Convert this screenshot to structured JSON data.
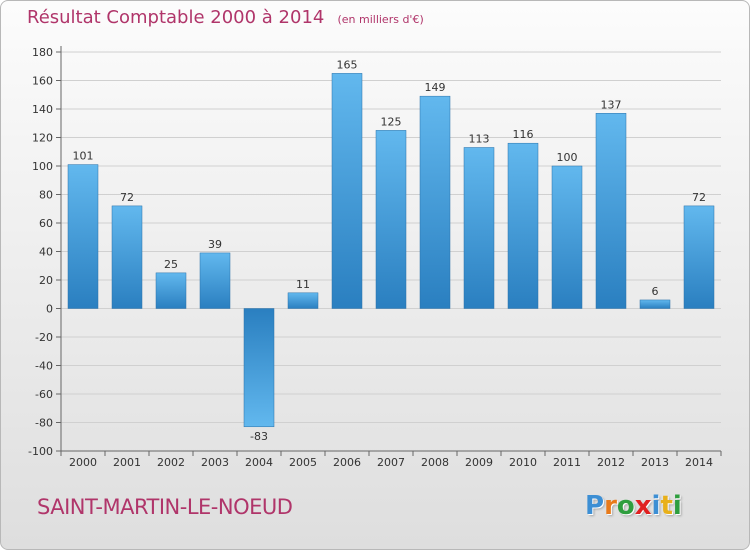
{
  "header": {
    "title": "Résultat Comptable 2000 à 2014",
    "subtitle": "(en milliers d'€)"
  },
  "commune": "SAINT-MARTIN-LE-NOEUD",
  "logo": {
    "text": "Proxiti",
    "letter_colors": [
      "#3d8fd4",
      "#e87a1a",
      "#2e9e3e",
      "#e02020",
      "#3d8fd4",
      "#e8b01a",
      "#2e9e3e"
    ]
  },
  "colors": {
    "bar_light": "#5eb4ec",
    "bar_dark": "#2a80c0",
    "title": "#b0356a",
    "axis": "#555555",
    "grid": "#cccccc"
  },
  "chart_data": {
    "type": "bar",
    "title": "Résultat Comptable 2000 à 2014",
    "subtitle": "(en milliers d'€)",
    "categories": [
      "2000",
      "2001",
      "2002",
      "2003",
      "2004",
      "2005",
      "2006",
      "2007",
      "2008",
      "2009",
      "2010",
      "2011",
      "2012",
      "2013",
      "2014"
    ],
    "values": [
      101,
      72,
      25,
      39,
      -83,
      11,
      165,
      125,
      149,
      113,
      116,
      100,
      137,
      6,
      72
    ],
    "ylim": [
      -100,
      180
    ],
    "yticks": [
      180,
      160,
      140,
      120,
      100,
      80,
      60,
      40,
      20,
      0,
      -20,
      -40,
      -60,
      -80,
      -100
    ],
    "xlabel": "",
    "ylabel": "",
    "grid": true,
    "data_labels": true
  }
}
